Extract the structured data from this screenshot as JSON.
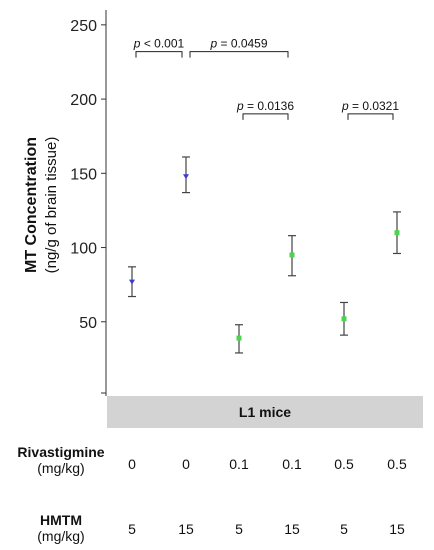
{
  "chart_data": {
    "type": "scatter",
    "ylabel": "MT Concentration",
    "ylabel_sub": "(ng/g of brain tissue)",
    "ylim": [
      0,
      260
    ],
    "yticks": [
      50,
      100,
      150,
      200,
      250
    ],
    "grid": false,
    "group_label": "L1 mice",
    "points": [
      {
        "value": 77,
        "err_low": 67,
        "err_high": 87,
        "marker": "triangle-down",
        "color": "#3b3bd4"
      },
      {
        "value": 148,
        "err_low": 137,
        "err_high": 161,
        "marker": "triangle-down",
        "color": "#3b3bd4"
      },
      {
        "value": 39,
        "err_low": 29,
        "err_high": 48,
        "marker": "square",
        "color": "#4cd44c"
      },
      {
        "value": 95,
        "err_low": 81,
        "err_high": 108,
        "marker": "square",
        "color": "#4cd44c"
      },
      {
        "value": 52,
        "err_low": 41,
        "err_high": 63,
        "marker": "square",
        "color": "#4cd44c"
      },
      {
        "value": 110,
        "err_low": 96,
        "err_high": 124,
        "marker": "square",
        "color": "#4cd44c"
      }
    ],
    "annotations": [
      {
        "from": 0,
        "to": 1,
        "level": 232,
        "prefix": "p",
        "text": " < 0.001"
      },
      {
        "from": 1,
        "to": 3,
        "level": 232,
        "prefix": "p",
        "text": " = 0.0459"
      },
      {
        "from": 2,
        "to": 3,
        "level": 190,
        "prefix": "p",
        "text": " = 0.0136"
      },
      {
        "from": 4,
        "to": 5,
        "level": 190,
        "prefix": "p",
        "text": " = 0.0321"
      }
    ]
  },
  "table": {
    "rows": [
      {
        "label": "Rivastigmine",
        "unit": "(mg/kg)",
        "values": [
          "0",
          "0",
          "0.1",
          "0.1",
          "0.5",
          "0.5"
        ]
      },
      {
        "label": "HMTM",
        "unit": "(mg/kg)",
        "values": [
          "5",
          "15",
          "5",
          "15",
          "5",
          "15"
        ]
      }
    ]
  }
}
